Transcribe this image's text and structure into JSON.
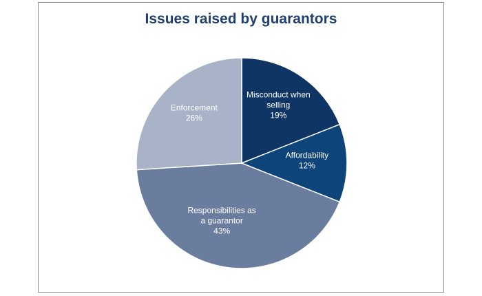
{
  "chart_data": {
    "type": "pie",
    "title": "Issues raised by guarantors",
    "slices": [
      {
        "label_lines": [
          "Misconduct when",
          "selling"
        ],
        "value": 19,
        "value_label": "19%",
        "color": "#0f3564"
      },
      {
        "label_lines": [
          "Affordability"
        ],
        "value": 12,
        "value_label": "12%",
        "color": "#0d4479"
      },
      {
        "label_lines": [
          "Responsibilities as",
          "a guarantor"
        ],
        "value": 43,
        "value_label": "43%",
        "color": "#6b7d9f"
      },
      {
        "label_lines": [
          "Enforcement"
        ],
        "value": 26,
        "value_label": "26%",
        "color": "#a8b3c7"
      }
    ],
    "start_angle_deg": 0,
    "direction": "clockwise",
    "legend": "none"
  }
}
